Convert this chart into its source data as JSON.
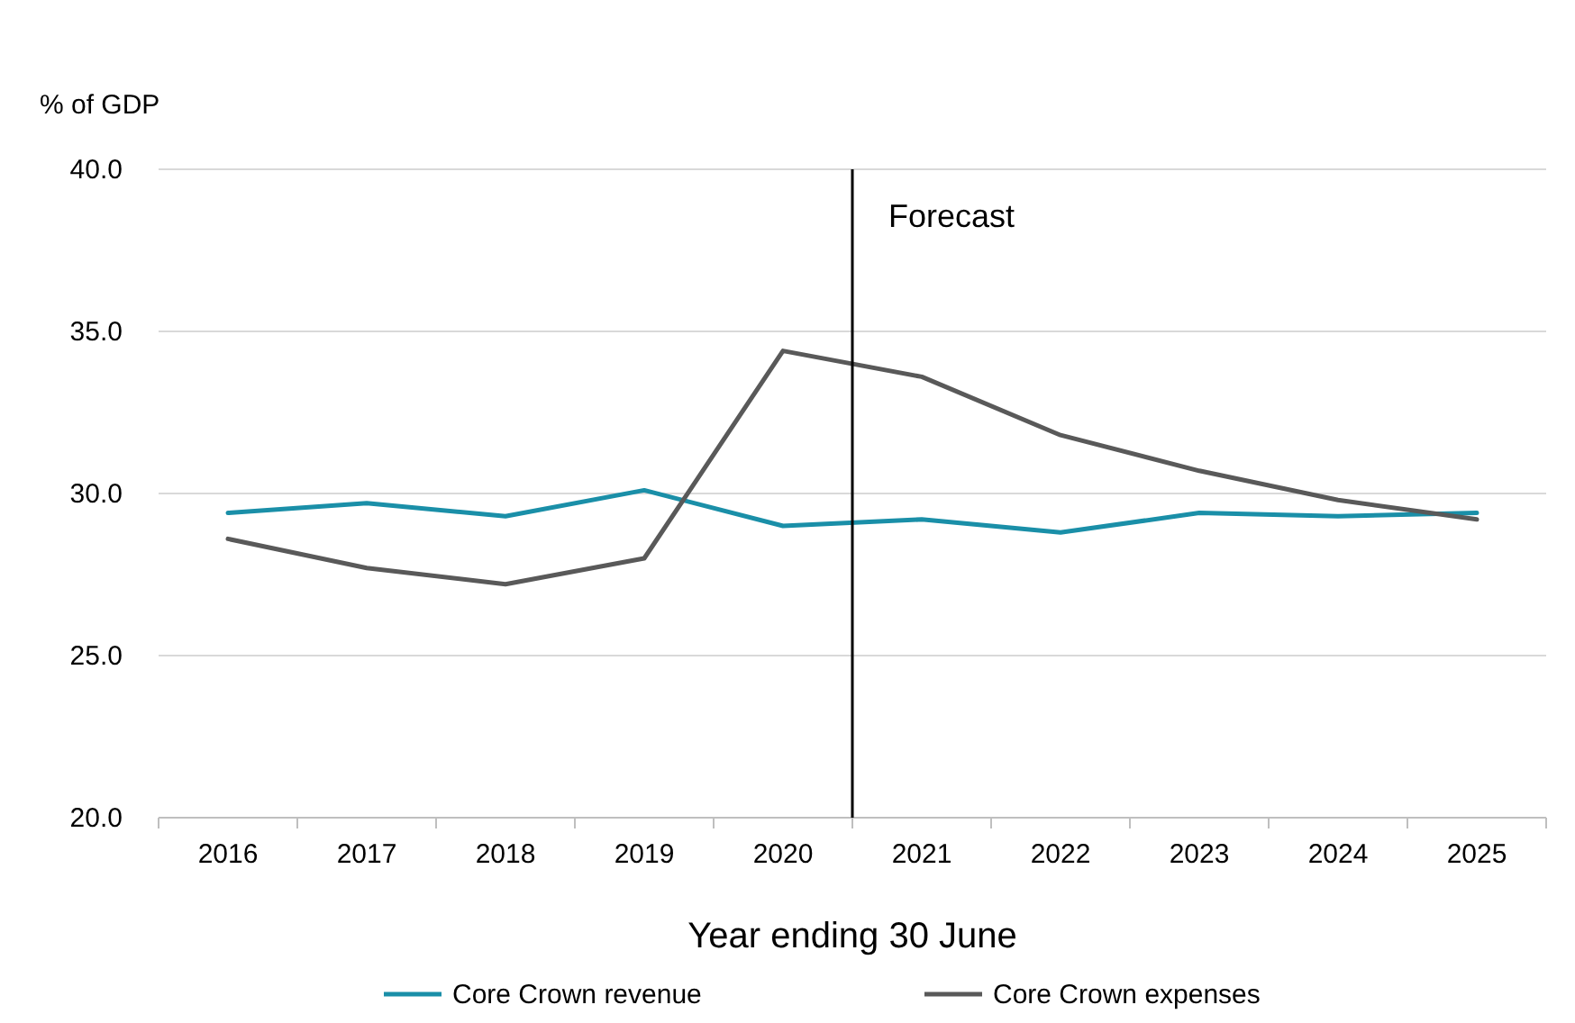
{
  "chart_data": {
    "type": "line",
    "ylabel": "% of GDP",
    "xlabel": "Year ending 30 June",
    "x": [
      2016,
      2017,
      2018,
      2019,
      2020,
      2021,
      2022,
      2023,
      2024,
      2025
    ],
    "xlim": [
      2015.5,
      2025.5
    ],
    "xticks": [
      2016,
      2017,
      2018,
      2019,
      2020,
      2021,
      2022,
      2023,
      2024,
      2025
    ],
    "ylim": [
      20,
      40
    ],
    "yticks": [
      {
        "value": 20,
        "label": "20.0"
      },
      {
        "value": 25,
        "label": "25.0"
      },
      {
        "value": 30,
        "label": "30.0"
      },
      {
        "value": 35,
        "label": "35.0"
      },
      {
        "value": 40,
        "label": "40.0"
      }
    ],
    "grid": "y",
    "legend": "bottom",
    "marker": "none",
    "line_style": "solid",
    "ref_lines": [
      {
        "axis": "x",
        "value": 2020.5,
        "label": "Forecast",
        "color": "#000000"
      }
    ],
    "series": [
      {
        "name": "Core Crown revenue",
        "color": "#1a8fa8",
        "values": [
          29.4,
          29.7,
          29.3,
          30.1,
          29.0,
          29.2,
          28.8,
          29.4,
          29.3,
          29.4
        ]
      },
      {
        "name": "Core Crown expenses",
        "color": "#595959",
        "values": [
          28.6,
          27.7,
          27.2,
          28.0,
          34.4,
          33.6,
          31.8,
          30.7,
          29.8,
          29.2
        ]
      }
    ]
  }
}
